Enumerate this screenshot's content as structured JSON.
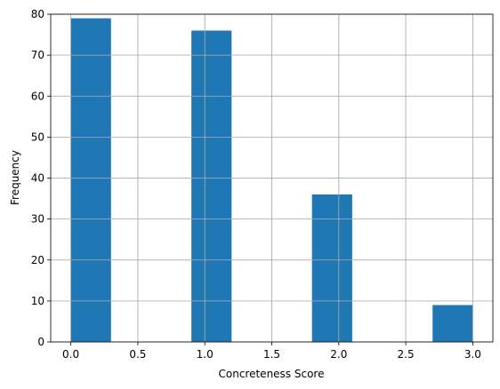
{
  "chart_data": {
    "type": "histogram",
    "xlabel": "Concreteness Score",
    "ylabel": "Frequency",
    "bins": [
      0,
      0.3,
      0.6,
      0.9,
      1.2,
      1.5,
      1.8,
      2.1,
      2.4,
      2.7,
      3
    ],
    "values": [
      79,
      0,
      0,
      76,
      0,
      0,
      36,
      0,
      0,
      9
    ],
    "color": "#1f77b4",
    "xlim": [
      -0.15,
      3.15
    ],
    "xticks": [
      {
        "value": 0,
        "label": "0.0"
      },
      {
        "value": 0.5,
        "label": "0.5"
      },
      {
        "value": 1,
        "label": "1.0"
      },
      {
        "value": 1.5,
        "label": "1.5"
      },
      {
        "value": 2,
        "label": "2.0"
      },
      {
        "value": 2.5,
        "label": "2.5"
      },
      {
        "value": 3,
        "label": "3.0"
      }
    ],
    "ylim": [
      0,
      80
    ],
    "yticks": [
      0,
      10,
      20,
      30,
      40,
      50,
      60,
      70,
      80
    ],
    "grid": true
  }
}
